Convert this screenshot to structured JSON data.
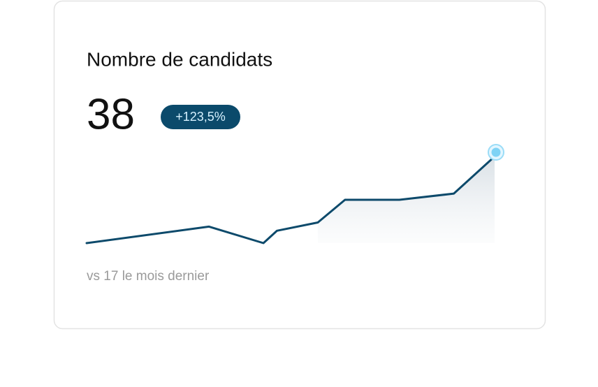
{
  "card": {
    "value": "38",
    "change": "+123,5%",
    "comparison": "vs 17 le mois dernier"
  },
  "chart_data": {
    "type": "line",
    "title": "Nombre de candidats",
    "x": [
      1,
      10,
      14,
      15,
      18,
      20,
      24,
      28,
      31
    ],
    "series": [
      {
        "color": "#0d4a6b",
        "values": [
          17,
          21,
          17,
          20,
          22,
          27.5,
          27.5,
          29,
          38
        ]
      }
    ],
    "xlim": [
      1,
      31
    ],
    "ylim": [
      17,
      38
    ]
  }
}
